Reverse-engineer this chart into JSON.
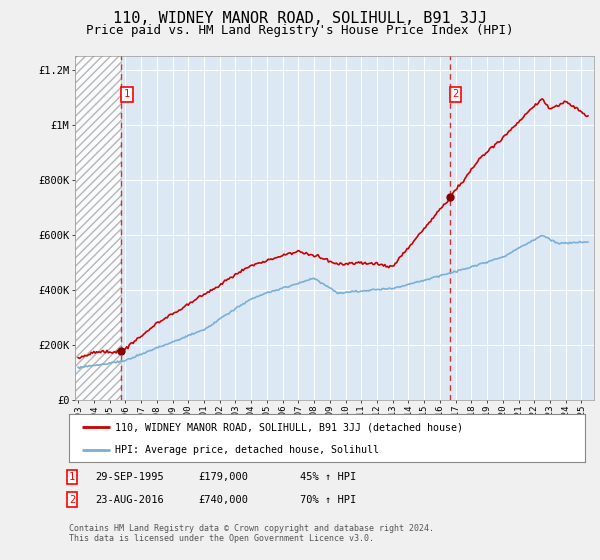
{
  "title": "110, WIDNEY MANOR ROAD, SOLIHULL, B91 3JJ",
  "subtitle": "Price paid vs. HM Land Registry's House Price Index (HPI)",
  "title_fontsize": 11,
  "subtitle_fontsize": 9,
  "background_color": "#f0f0f0",
  "plot_bg_color": "#dce9f5",
  "hatch_region_end_year": 1995.75,
  "sale1": {
    "year": 1995.75,
    "price": 179000,
    "label": "1"
  },
  "sale2": {
    "year": 2016.64,
    "price": 740000,
    "label": "2"
  },
  "ylim": [
    0,
    1250000
  ],
  "xlim": [
    1992.8,
    2025.8
  ],
  "yticks": [
    0,
    200000,
    400000,
    600000,
    800000,
    1000000,
    1200000
  ],
  "ytick_labels": [
    "£0",
    "£200K",
    "£400K",
    "£600K",
    "£800K",
    "£1M",
    "£1.2M"
  ],
  "xticks": [
    1993,
    1994,
    1995,
    1996,
    1997,
    1998,
    1999,
    2000,
    2001,
    2002,
    2003,
    2004,
    2005,
    2006,
    2007,
    2008,
    2009,
    2010,
    2011,
    2012,
    2013,
    2014,
    2015,
    2016,
    2017,
    2018,
    2019,
    2020,
    2021,
    2022,
    2023,
    2024,
    2025
  ],
  "property_line_color": "#cc0000",
  "hpi_line_color": "#7bafd4",
  "dot_color": "#880000",
  "legend_label_property": "110, WIDNEY MANOR ROAD, SOLIHULL, B91 3JJ (detached house)",
  "legend_label_hpi": "HPI: Average price, detached house, Solihull",
  "annotation1_date": "29-SEP-1995",
  "annotation1_price": "£179,000",
  "annotation1_hpi": "45% ↑ HPI",
  "annotation2_date": "23-AUG-2016",
  "annotation2_price": "£740,000",
  "annotation2_hpi": "70% ↑ HPI",
  "footer": "Contains HM Land Registry data © Crown copyright and database right 2024.\nThis data is licensed under the Open Government Licence v3.0.",
  "grid_color": "#ffffff",
  "hatch_color": "#aaaaaa"
}
